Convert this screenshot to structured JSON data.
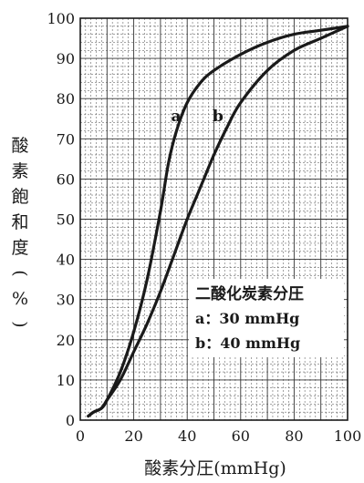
{
  "chart_data": {
    "type": "line",
    "xlabel": "酸素分圧(mmHg)",
    "ylabel": "酸素飽和度(%)",
    "xlim": [
      0,
      100
    ],
    "ylim": [
      0,
      100
    ],
    "x_ticks": [
      "0",
      "20",
      "40",
      "60",
      "80",
      "100"
    ],
    "y_ticks": [
      "0",
      "10",
      "20",
      "30",
      "40",
      "50",
      "60",
      "70",
      "80",
      "90",
      "100"
    ],
    "grid": true,
    "legend": {
      "title": "二酸化炭素分圧",
      "entries": [
        "a：30 mmHg",
        "b：40 mmHg"
      ],
      "position": "bottom-right"
    },
    "series": [
      {
        "name": "a",
        "x": [
          3,
          5,
          8,
          10,
          15,
          20,
          25,
          30,
          33,
          36,
          40,
          45,
          50,
          60,
          70,
          80,
          90,
          100
        ],
        "y": [
          1,
          2,
          3,
          5,
          12,
          22,
          35,
          52,
          64,
          72,
          79,
          84,
          87,
          91,
          94,
          96,
          97,
          98
        ]
      },
      {
        "name": "b",
        "x": [
          3,
          5,
          8,
          10,
          15,
          20,
          25,
          30,
          35,
          40,
          45,
          50,
          55,
          60,
          70,
          80,
          90,
          100
        ],
        "y": [
          1,
          2,
          3,
          5,
          10,
          17,
          24,
          32,
          41,
          50,
          58,
          66,
          73,
          79,
          87,
          92,
          95,
          98
        ]
      }
    ]
  }
}
